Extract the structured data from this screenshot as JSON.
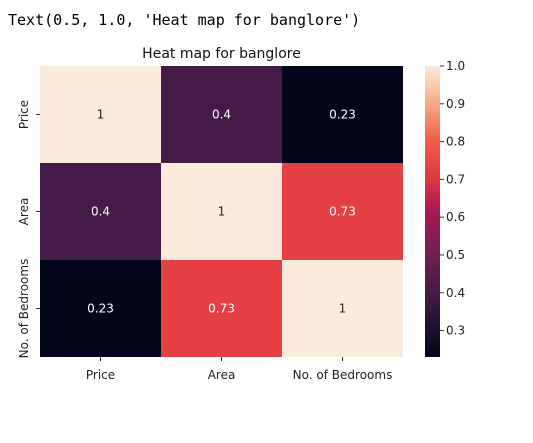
{
  "output_text": "Text(0.5, 1.0, 'Heat map for banglore')",
  "chart_data": {
    "type": "heatmap",
    "title": "Heat map for banglore",
    "x_categories": [
      "Price",
      "Area",
      "No. of Bedrooms"
    ],
    "y_categories": [
      "Price",
      "Area",
      "No. of Bedrooms"
    ],
    "values": [
      [
        1,
        0.4,
        0.23
      ],
      [
        0.4,
        1,
        0.73
      ],
      [
        0.23,
        0.73,
        1
      ]
    ],
    "annotations": [
      [
        "1",
        "0.4",
        "0.23"
      ],
      [
        "0.4",
        "1",
        "0.73"
      ],
      [
        "0.23",
        "0.73",
        "1"
      ]
    ],
    "colorbar": {
      "vmin": 0.23,
      "vmax": 1.0,
      "ticks": [
        1.0,
        0.9,
        0.8,
        0.7,
        0.6,
        0.5,
        0.4,
        0.3
      ],
      "tick_labels": [
        "1.0",
        "0.9",
        "0.8",
        "0.7",
        "0.6",
        "0.5",
        "0.4",
        "0.3"
      ],
      "colormap": "rocket"
    }
  }
}
